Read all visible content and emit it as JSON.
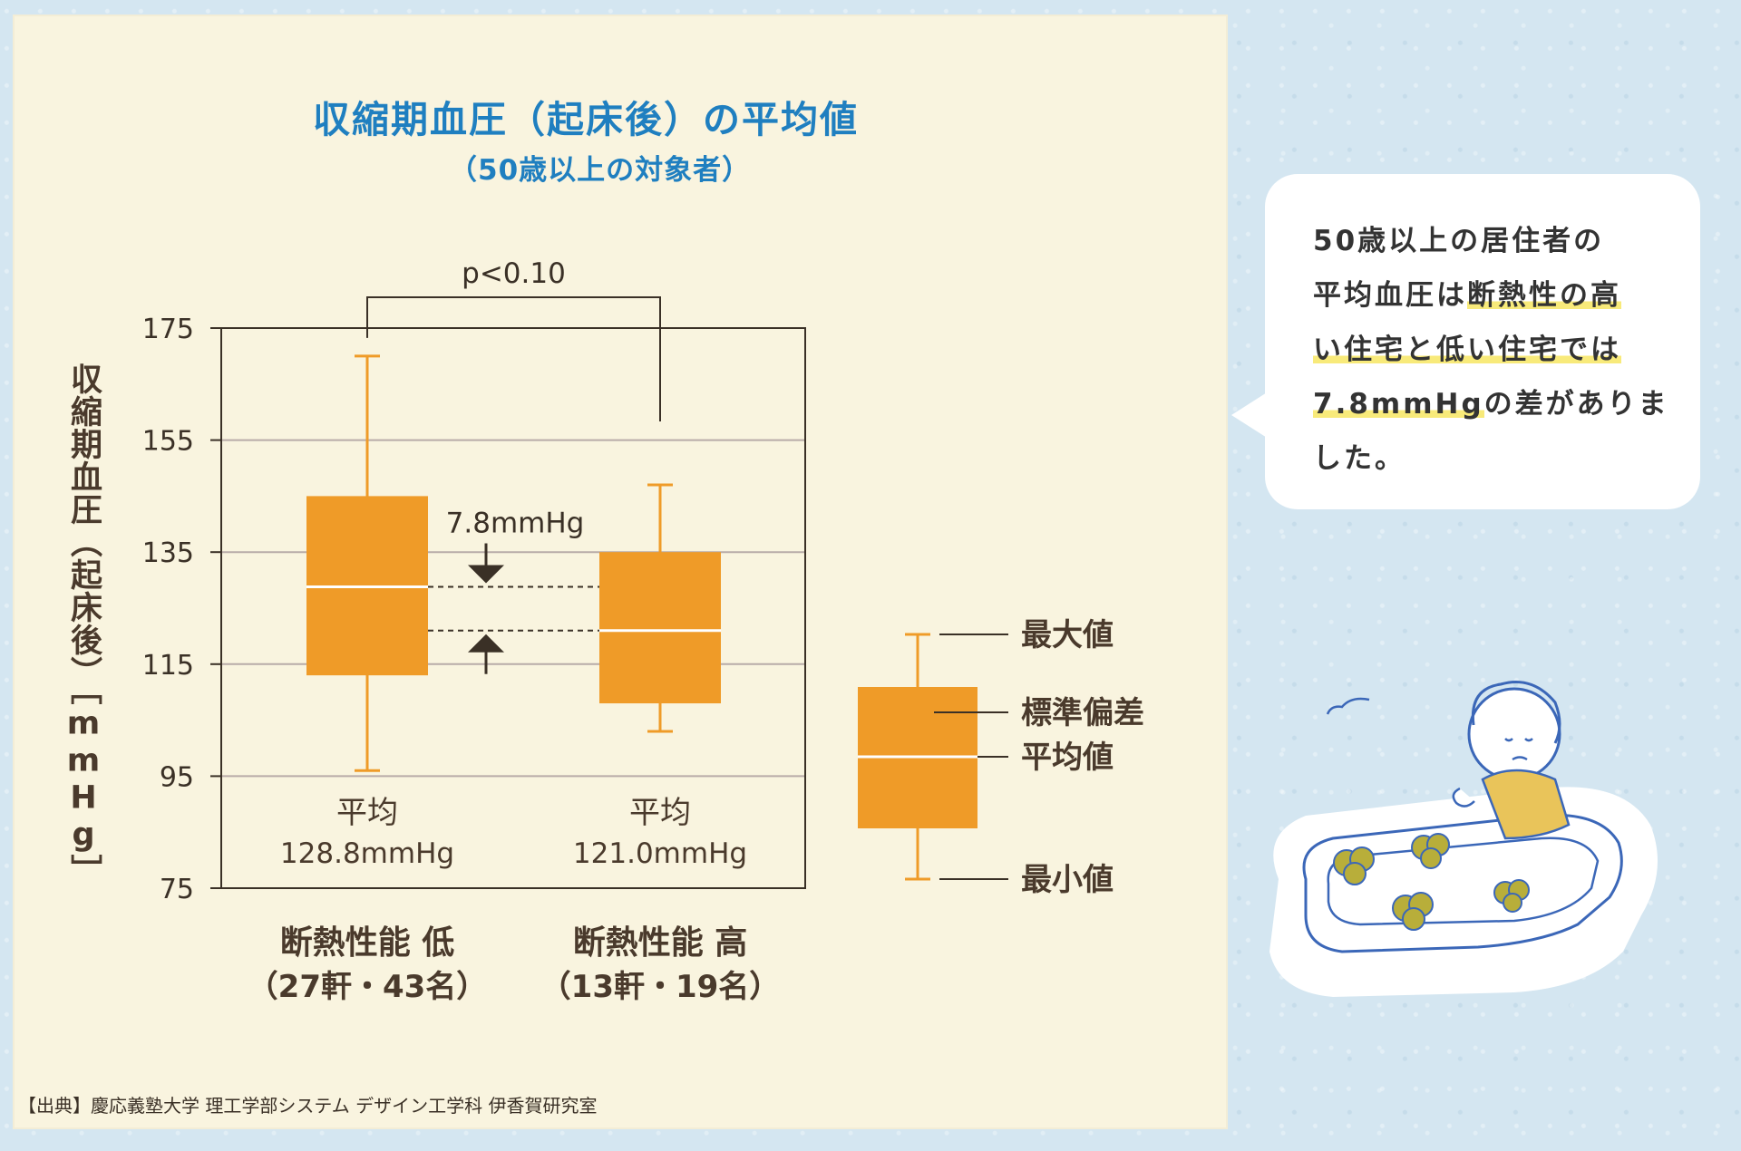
{
  "title": "収縮期血圧（起床後）の平均値",
  "subtitle": "（50歳以上の対象者）",
  "y_axis_label": "収縮期血圧（起床後）［mmHg］",
  "source": "【出典】慶応義塾大学 理工学部システム デザイン工学科 伊香賀研究室",
  "colors": {
    "box": "#ef9b28",
    "title": "#1f7fc0",
    "text": "#4a3a2c",
    "grid": "#b8aba8",
    "panel": "#f9f4df",
    "background": "#d4e6f1",
    "highlight": "#f8ea7a"
  },
  "chart_data": {
    "type": "box",
    "ylim": [
      75,
      175
    ],
    "yticks": [
      75,
      95,
      115,
      135,
      155,
      175
    ],
    "grid": true,
    "series": [
      {
        "category": "断熱性能 低",
        "subcategory": "（27軒・43名）",
        "min": 96,
        "sd_low": 113,
        "mean": 128.8,
        "sd_high": 145,
        "max": 170,
        "mean_label": "平均",
        "mean_value_label": "128.8mmHg"
      },
      {
        "category": "断熱性能 高",
        "subcategory": "（13軒・19名）",
        "min": 103,
        "sd_low": 108,
        "mean": 121.0,
        "sd_high": 135,
        "max": 147,
        "mean_label": "平均",
        "mean_value_label": "121.0mmHg"
      }
    ],
    "significance": "p<0.10",
    "difference_label": "7.8mmHg",
    "legend": {
      "max": "最大値",
      "sd": "標準偏差",
      "mean": "平均値",
      "min": "最小値"
    }
  },
  "bubble": {
    "line1": "50歳以上の居住者の",
    "line2a": "平均血圧は",
    "line2b": "断熱性の高",
    "line3": "い住宅と低い住宅では",
    "line4a": "7.8mmHg",
    "line4b": "の差がありま",
    "line5": "した。"
  }
}
